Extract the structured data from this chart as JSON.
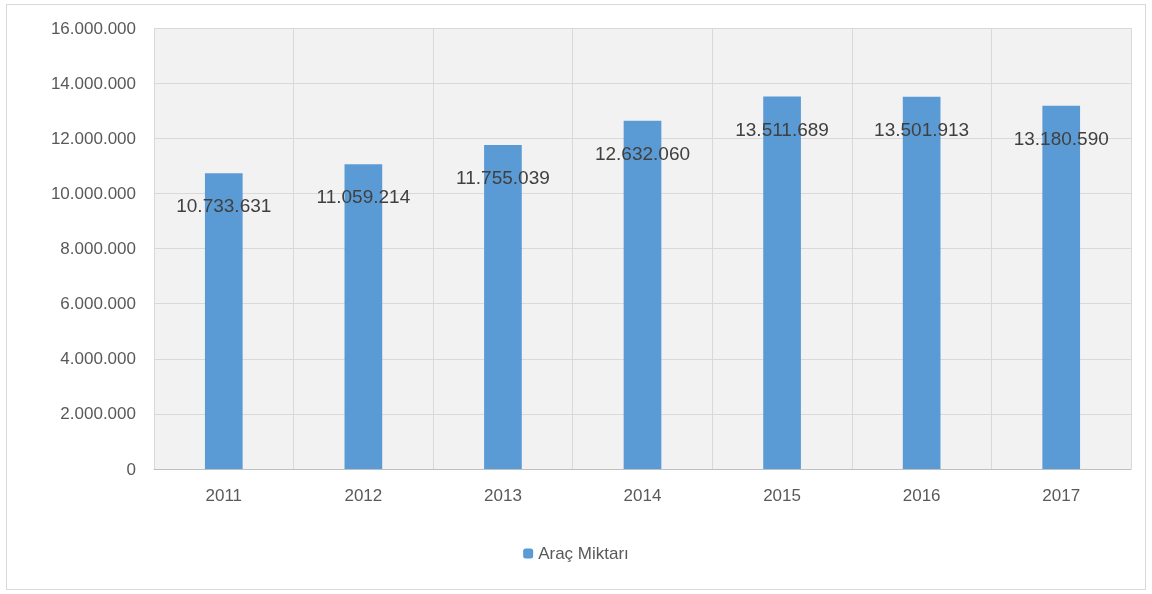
{
  "chart_data": {
    "type": "bar",
    "categories": [
      "2011",
      "2012",
      "2013",
      "2014",
      "2015",
      "2016",
      "2017"
    ],
    "series": [
      {
        "name": "Araç Miktarı",
        "color": "#5b9bd5",
        "values": [
          10733631,
          11059214,
          11755039,
          12632060,
          13511689,
          13501913,
          13180590
        ],
        "value_labels": [
          "10.733.631",
          "11.059.214",
          "11.755.039",
          "12.632.060",
          "13.511.689",
          "13.501.913",
          "13.180.590"
        ]
      }
    ],
    "ylim": [
      0,
      16000000
    ],
    "yticks": [
      {
        "value": 0,
        "label": "0"
      },
      {
        "value": 2000000,
        "label": "2.000.000"
      },
      {
        "value": 4000000,
        "label": "4.000.000"
      },
      {
        "value": 6000000,
        "label": "6.000.000"
      },
      {
        "value": 8000000,
        "label": "8.000.000"
      },
      {
        "value": 10000000,
        "label": "10.000.000"
      },
      {
        "value": 12000000,
        "label": "12.000.000"
      },
      {
        "value": 14000000,
        "label": "14.000.000"
      },
      {
        "value": 16000000,
        "label": "16.000.000"
      }
    ],
    "grid": true,
    "legend": "bottom"
  }
}
